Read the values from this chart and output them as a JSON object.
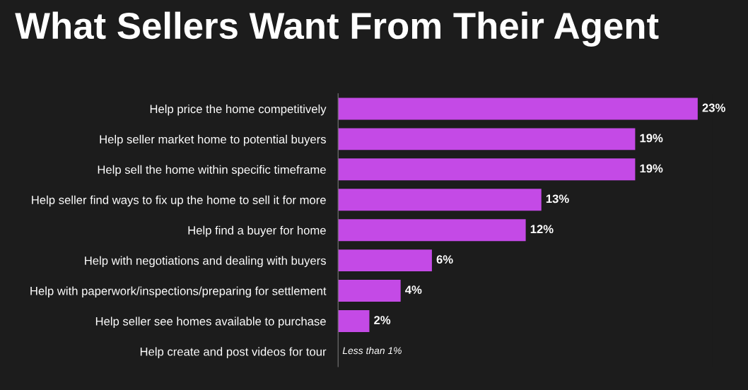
{
  "chart_data": {
    "type": "bar",
    "orientation": "horizontal",
    "title": "What Sellers Want From Their Agent",
    "categories": [
      "Help price the home competitively",
      "Help seller market home to potential buyers",
      "Help sell the home within specific timeframe",
      "Help seller find ways to fix up the home to sell it for more",
      "Help find a buyer for home",
      "Help with negotiations and dealing with buyers",
      "Help with paperwork/inspections/preparing for settlement",
      "Help seller see homes available to purchase",
      "Help create and post videos for tour"
    ],
    "values": [
      23,
      19,
      19,
      13,
      12,
      6,
      4,
      2,
      null
    ],
    "value_labels": [
      "23%",
      "19%",
      "19%",
      "13%",
      "12%",
      "6%",
      "4%",
      "2%",
      "Less than 1%"
    ],
    "color": "#c44ae6",
    "grid": false,
    "legend": false,
    "tick_labels": "y"
  }
}
